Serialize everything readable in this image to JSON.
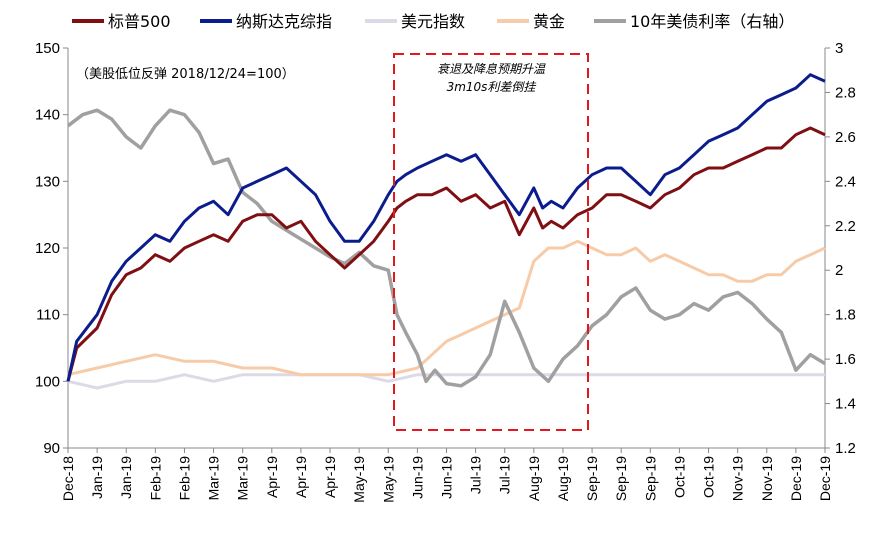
{
  "chart_data": {
    "type": "line",
    "note": "（美股低位反弹 2018/12/24=100）",
    "annotation": [
      "衰退及降息预期升温",
      "3m10s利差倒挂"
    ],
    "x_tick_labels": [
      "Dec-18",
      "Jan-19",
      "Jan-19",
      "Feb-19",
      "Feb-19",
      "Mar-19",
      "Mar-19",
      "Apr-19",
      "Apr-19",
      "Apr-19",
      "May-19",
      "May-19",
      "Jun-19",
      "Jun-19",
      "Jul-19",
      "Jul-19",
      "Aug-19",
      "Aug-19",
      "Sep-19",
      "Sep-19",
      "Sep-19",
      "Oct-19",
      "Oct-19",
      "Nov-19",
      "Nov-19",
      "Dec-19",
      "Dec-19"
    ],
    "y_left": {
      "min": 90,
      "max": 150,
      "ticks": [
        90,
        100,
        110,
        120,
        130,
        140,
        150
      ]
    },
    "y_right": {
      "min": 1.2,
      "max": 3.0,
      "ticks": [
        "1.2",
        "1.4",
        "1.6",
        "1.8",
        "2",
        "2.2",
        "2.4",
        "2.6",
        "2.8",
        "3"
      ]
    },
    "series": [
      {
        "name": "标普500",
        "color": "#7f0f12",
        "axis": "left",
        "x": [
          0,
          0.3,
          1,
          1.5,
          2,
          2.5,
          3,
          3.5,
          4,
          4.5,
          5,
          5.5,
          6,
          6.5,
          7,
          7.5,
          8,
          8.5,
          9,
          9.5,
          10,
          10.5,
          11,
          11.3,
          11.6,
          12,
          12.5,
          13,
          13.5,
          14,
          14.5,
          15,
          15.5,
          16,
          16.3,
          16.6,
          17,
          17.5,
          18,
          18.5,
          19,
          19.5,
          20,
          20.5,
          21,
          21.5,
          22,
          22.5,
          23,
          23.5,
          24,
          24.5,
          25,
          25.5,
          26
        ],
        "values": [
          100,
          105,
          108,
          113,
          116,
          117,
          119,
          118,
          120,
          121,
          122,
          121,
          124,
          125,
          125,
          123,
          124,
          121,
          119,
          117,
          119,
          121,
          124,
          126,
          127,
          128,
          128,
          129,
          127,
          128,
          126,
          127,
          122,
          126,
          123,
          124,
          123,
          125,
          126,
          128,
          128,
          127,
          126,
          128,
          129,
          131,
          132,
          132,
          133,
          134,
          135,
          135,
          137,
          138,
          137
        ]
      },
      {
        "name": "纳斯达克综指",
        "color": "#0b1c8c",
        "axis": "left",
        "x": [
          0,
          0.3,
          1,
          1.5,
          2,
          2.5,
          3,
          3.5,
          4,
          4.5,
          5,
          5.5,
          6,
          6.5,
          7,
          7.5,
          8,
          8.5,
          9,
          9.5,
          10,
          10.5,
          11,
          11.3,
          11.6,
          12,
          12.5,
          13,
          13.5,
          14,
          14.5,
          15,
          15.5,
          16,
          16.3,
          16.6,
          17,
          17.5,
          18,
          18.5,
          19,
          19.5,
          20,
          20.5,
          21,
          21.5,
          22,
          22.5,
          23,
          23.5,
          24,
          24.5,
          25,
          25.5,
          26
        ],
        "values": [
          100,
          106,
          110,
          115,
          118,
          120,
          122,
          121,
          124,
          126,
          127,
          125,
          129,
          130,
          131,
          132,
          130,
          128,
          124,
          121,
          121,
          124,
          128,
          130,
          131,
          132,
          133,
          134,
          133,
          134,
          131,
          128,
          125,
          129,
          126,
          127,
          126,
          129,
          131,
          132,
          132,
          130,
          128,
          131,
          132,
          134,
          136,
          137,
          138,
          140,
          142,
          143,
          144,
          146,
          145
        ]
      },
      {
        "name": "美元指数",
        "color": "#ddd9e6",
        "axis": "left",
        "x": [
          0,
          1,
          2,
          3,
          4,
          5,
          6,
          7,
          8,
          9,
          10,
          11,
          12,
          13,
          14,
          15,
          16,
          17,
          18,
          19,
          20,
          21,
          22,
          23,
          24,
          25,
          26
        ],
        "values": [
          100,
          99,
          100,
          100,
          101,
          100,
          101,
          101,
          101,
          101,
          101,
          100,
          101,
          101,
          101,
          101,
          101,
          101,
          101,
          101,
          101,
          101,
          101,
          101,
          101,
          101,
          101
        ]
      },
      {
        "name": "黄金",
        "color": "#f7cba7",
        "axis": "left",
        "x": [
          0,
          1,
          2,
          3,
          4,
          5,
          6,
          7,
          8,
          9,
          10,
          11,
          12,
          12.5,
          13,
          13.5,
          14,
          14.5,
          15,
          15.5,
          16,
          16.5,
          17,
          17.5,
          18,
          18.5,
          19,
          19.5,
          20,
          20.5,
          21,
          21.5,
          22,
          22.5,
          23,
          23.5,
          24,
          24.5,
          25,
          25.5,
          26
        ],
        "values": [
          101,
          102,
          103,
          104,
          103,
          103,
          102,
          102,
          101,
          101,
          101,
          101,
          102,
          104,
          106,
          107,
          108,
          109,
          110,
          111,
          118,
          120,
          120,
          121,
          120,
          119,
          119,
          120,
          118,
          119,
          118,
          117,
          116,
          116,
          115,
          115,
          116,
          116,
          118,
          119,
          120
        ]
      },
      {
        "name": "10年美债利率（右轴）",
        "color": "#a0a0a0",
        "axis": "right",
        "x": [
          0,
          0.5,
          1,
          1.5,
          2,
          2.5,
          3,
          3.5,
          4,
          4.5,
          5,
          5.5,
          6,
          6.5,
          7,
          7.5,
          8,
          8.5,
          9,
          9.5,
          10,
          10.5,
          11,
          11.3,
          11.6,
          12,
          12.3,
          12.6,
          13,
          13.5,
          14,
          14.5,
          15,
          15.5,
          16,
          16.5,
          17,
          17.5,
          18,
          18.5,
          19,
          19.5,
          20,
          20.5,
          21,
          21.5,
          22,
          22.5,
          23,
          23.5,
          24,
          24.5,
          25,
          25.5,
          26
        ],
        "values": [
          2.65,
          2.7,
          2.72,
          2.68,
          2.6,
          2.55,
          2.65,
          2.72,
          2.7,
          2.62,
          2.48,
          2.5,
          2.35,
          2.3,
          2.22,
          2.18,
          2.14,
          2.1,
          2.06,
          2.03,
          2.08,
          2.02,
          2.0,
          1.8,
          1.72,
          1.62,
          1.5,
          1.55,
          1.49,
          1.48,
          1.52,
          1.62,
          1.86,
          1.72,
          1.56,
          1.5,
          1.6,
          1.66,
          1.75,
          1.8,
          1.88,
          1.92,
          1.82,
          1.78,
          1.8,
          1.85,
          1.82,
          1.88,
          1.9,
          1.85,
          1.78,
          1.72,
          1.55,
          1.62,
          1.58
        ]
      }
    ]
  }
}
